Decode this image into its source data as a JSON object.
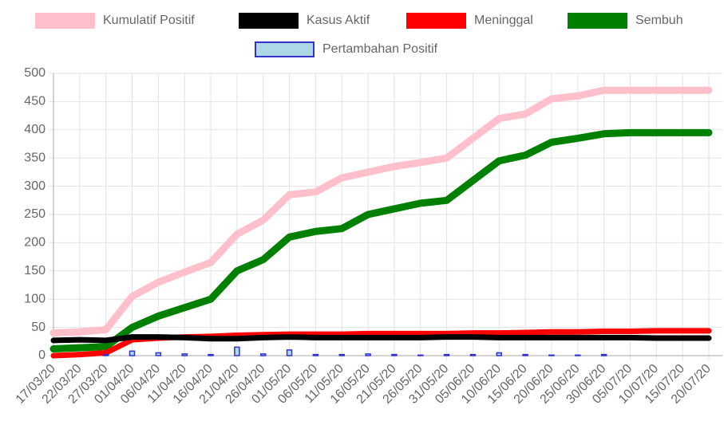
{
  "chart_data": {
    "type": "line",
    "categories": [
      "17/03/20",
      "22/03/20",
      "27/03/20",
      "01/04/20",
      "06/04/20",
      "11/04/20",
      "16/04/20",
      "21/04/20",
      "26/04/20",
      "01/05/20",
      "06/05/20",
      "11/05/20",
      "16/05/20",
      "21/05/20",
      "26/05/20",
      "31/05/20",
      "05/06/20",
      "10/06/20",
      "15/06/20",
      "20/06/20",
      "25/06/20",
      "30/06/20",
      "05/07/20",
      "10/07/20",
      "15/07/20",
      "20/07/20"
    ],
    "series": [
      {
        "name": "Kumulatif Positif",
        "color": "#ffc0cb",
        "values": [
          40,
          42,
          46,
          105,
          130,
          148,
          165,
          215,
          240,
          285,
          290,
          315,
          325,
          335,
          342,
          350,
          385,
          420,
          428,
          455,
          460,
          470,
          470,
          470,
          470,
          470
        ]
      },
      {
        "name": "Kasus Aktif",
        "color": "#000000",
        "values": [
          27,
          28,
          27,
          33,
          33,
          32,
          30,
          30,
          32,
          33,
          32,
          32,
          32,
          32,
          32,
          33,
          33,
          32,
          32,
          32,
          32,
          32,
          32,
          31,
          31,
          31
        ]
      },
      {
        "name": "Meninggal",
        "color": "#ff0000",
        "values": [
          0,
          2,
          5,
          28,
          31,
          33,
          34,
          36,
          37,
          38,
          38,
          38,
          39,
          39,
          39,
          39,
          40,
          40,
          41,
          42,
          42,
          43,
          43,
          44,
          44,
          44
        ]
      },
      {
        "name": "Sembuh",
        "color": "#008000",
        "values": [
          12,
          14,
          16,
          50,
          70,
          85,
          100,
          150,
          170,
          210,
          220,
          225,
          250,
          260,
          270,
          275,
          310,
          345,
          355,
          378,
          385,
          393,
          395,
          395,
          395,
          395
        ]
      },
      {
        "name": "Pertambahan Positif",
        "type": "bar",
        "color": "#add8e6",
        "border_color": "#3333cc",
        "values": [
          0,
          0,
          2,
          8,
          5,
          3,
          2,
          15,
          3,
          10,
          2,
          2,
          3,
          2,
          1,
          2,
          2,
          5,
          2,
          1,
          1,
          2,
          0,
          0,
          0,
          0
        ]
      }
    ],
    "ylim": [
      0,
      500
    ],
    "yticks": [
      0,
      50,
      100,
      150,
      200,
      250,
      300,
      350,
      400,
      450,
      500
    ],
    "grid": true,
    "legend": "top"
  }
}
